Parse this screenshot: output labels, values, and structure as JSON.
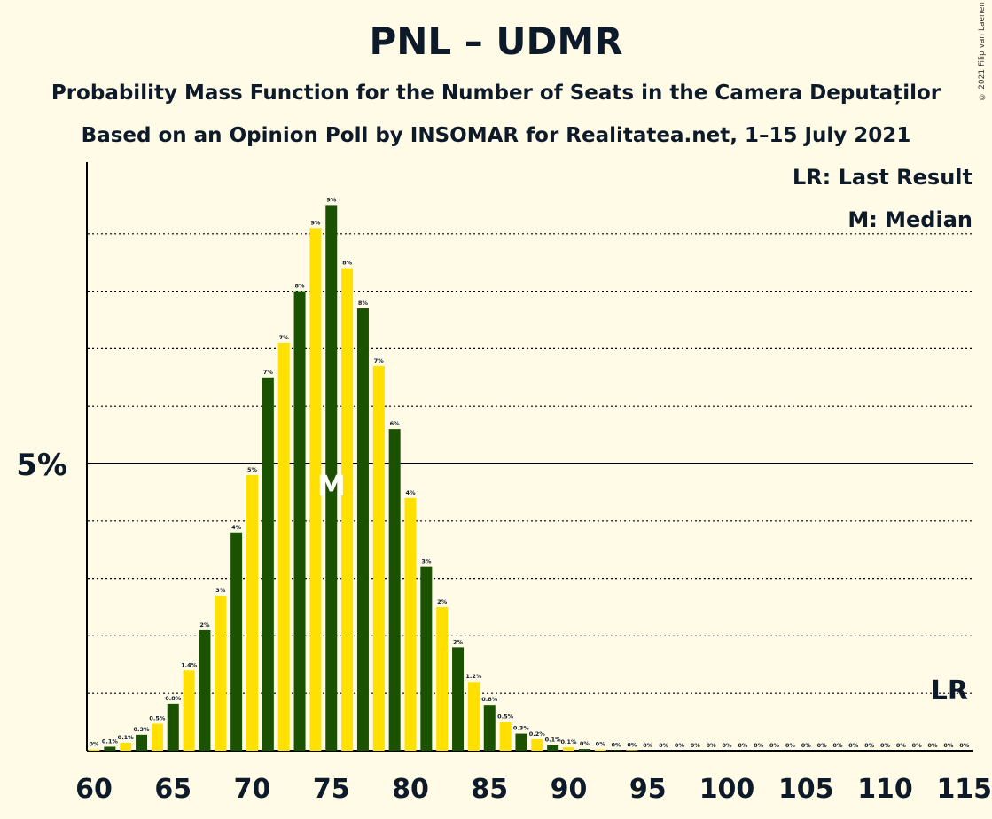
{
  "title": "PNL – UDMR",
  "subtitle": "Probability Mass Function for the Number of Seats in the Camera Deputaților",
  "subtitle2": "Based on an Opinion Poll by INSOMAR for Realitatea.net, 1–15 July 2021",
  "copyright": "© 2021 Filip van Laenen",
  "legend": {
    "lr": "LR: Last Result",
    "median": "M: Median"
  },
  "colors": {
    "dark": "#1A5200",
    "light": "#FFE000",
    "background": "#FFFBE6"
  },
  "chart_data": {
    "type": "bar",
    "x": [
      60,
      61,
      62,
      63,
      64,
      65,
      66,
      67,
      68,
      69,
      70,
      71,
      72,
      73,
      74,
      75,
      76,
      77,
      78,
      79,
      80,
      81,
      82,
      83,
      84,
      85,
      86,
      87,
      88,
      89,
      90,
      91,
      92,
      93,
      94,
      95,
      96,
      97,
      98,
      99,
      100,
      101,
      102,
      103,
      104,
      105,
      106,
      107,
      108,
      109,
      110,
      111,
      112,
      113,
      114,
      115
    ],
    "values": [
      0.02,
      0.07,
      0.14,
      0.28,
      0.47,
      0.82,
      1.4,
      2.1,
      2.7,
      3.8,
      4.8,
      6.5,
      7.1,
      8.0,
      9.1,
      9.5,
      8.4,
      7.7,
      6.7,
      5.6,
      4.4,
      3.2,
      2.5,
      1.8,
      1.2,
      0.8,
      0.5,
      0.3,
      0.2,
      0.1,
      0.06,
      0.03,
      0.02,
      0.01,
      0.01,
      0,
      0,
      0,
      0,
      0,
      0,
      0,
      0,
      0,
      0,
      0,
      0,
      0,
      0,
      0,
      0,
      0,
      0,
      0,
      0,
      0
    ],
    "labels": [
      "0%",
      "0.1%",
      "0.1%",
      "0.3%",
      "0.5%",
      "0.8%",
      "1.4%",
      "2%",
      "3%",
      "4%",
      "5%",
      "7%",
      "7%",
      "8%",
      "9%",
      "9%",
      "8%",
      "8%",
      "7%",
      "6%",
      "4%",
      "3%",
      "2%",
      "2%",
      "1.2%",
      "0.8%",
      "0.5%",
      "0.3%",
      "0.2%",
      "0.1%",
      "0.1%",
      "0%",
      "0%",
      "0%",
      "0%",
      "0%",
      "0%",
      "0%",
      "0%",
      "0%",
      "0%",
      "0%",
      "0%",
      "0%",
      "0%",
      "0%",
      "0%",
      "0%",
      "0%",
      "0%",
      "0%",
      "0%",
      "0%",
      "0%",
      "0%",
      "0%"
    ],
    "xticks": [
      "60",
      "65",
      "70",
      "75",
      "80",
      "85",
      "90",
      "95",
      "100",
      "105",
      "110",
      "115"
    ],
    "yticks": [
      "5%"
    ],
    "ylim": [
      0,
      10.5
    ],
    "median": 75,
    "median_label": "M",
    "last_result": 115,
    "last_result_label": "LR"
  }
}
